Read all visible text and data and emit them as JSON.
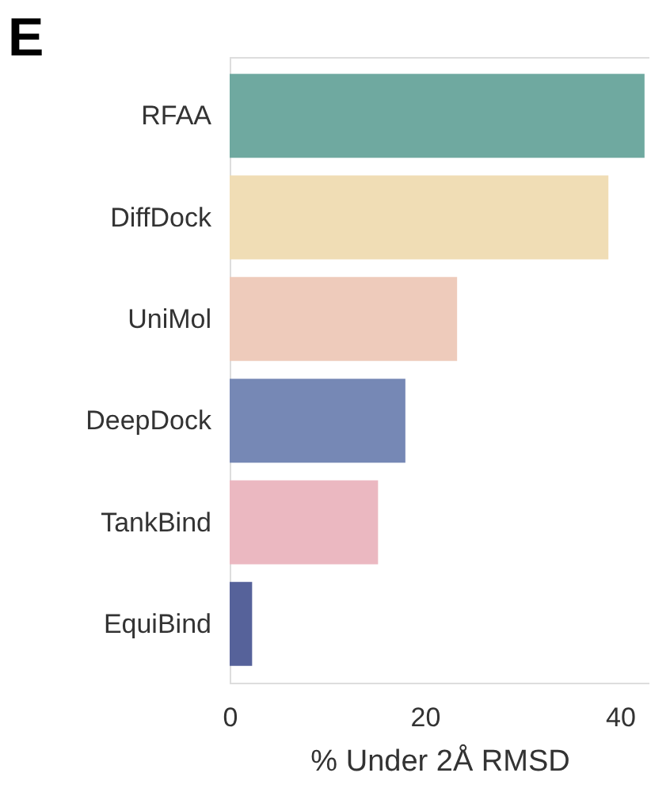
{
  "chart_data": {
    "type": "bar",
    "orientation": "horizontal",
    "xlabel": "% Under 2Å RMSD",
    "categories": [
      "RFAA",
      "DiffDock",
      "UniMol",
      "DeepDock",
      "TankBind",
      "EquiBind"
    ],
    "values": [
      42.5,
      38.8,
      23.3,
      18.0,
      15.2,
      2.3
    ],
    "colors": [
      "#6fa9a0",
      "#f0ddb5",
      "#eecbbb",
      "#7688b5",
      "#ebb8c1",
      "#56629a"
    ],
    "xlim": [
      0,
      43
    ],
    "xticks": [
      0,
      20,
      40
    ],
    "grid": false,
    "annotations": [
      "E"
    ]
  }
}
